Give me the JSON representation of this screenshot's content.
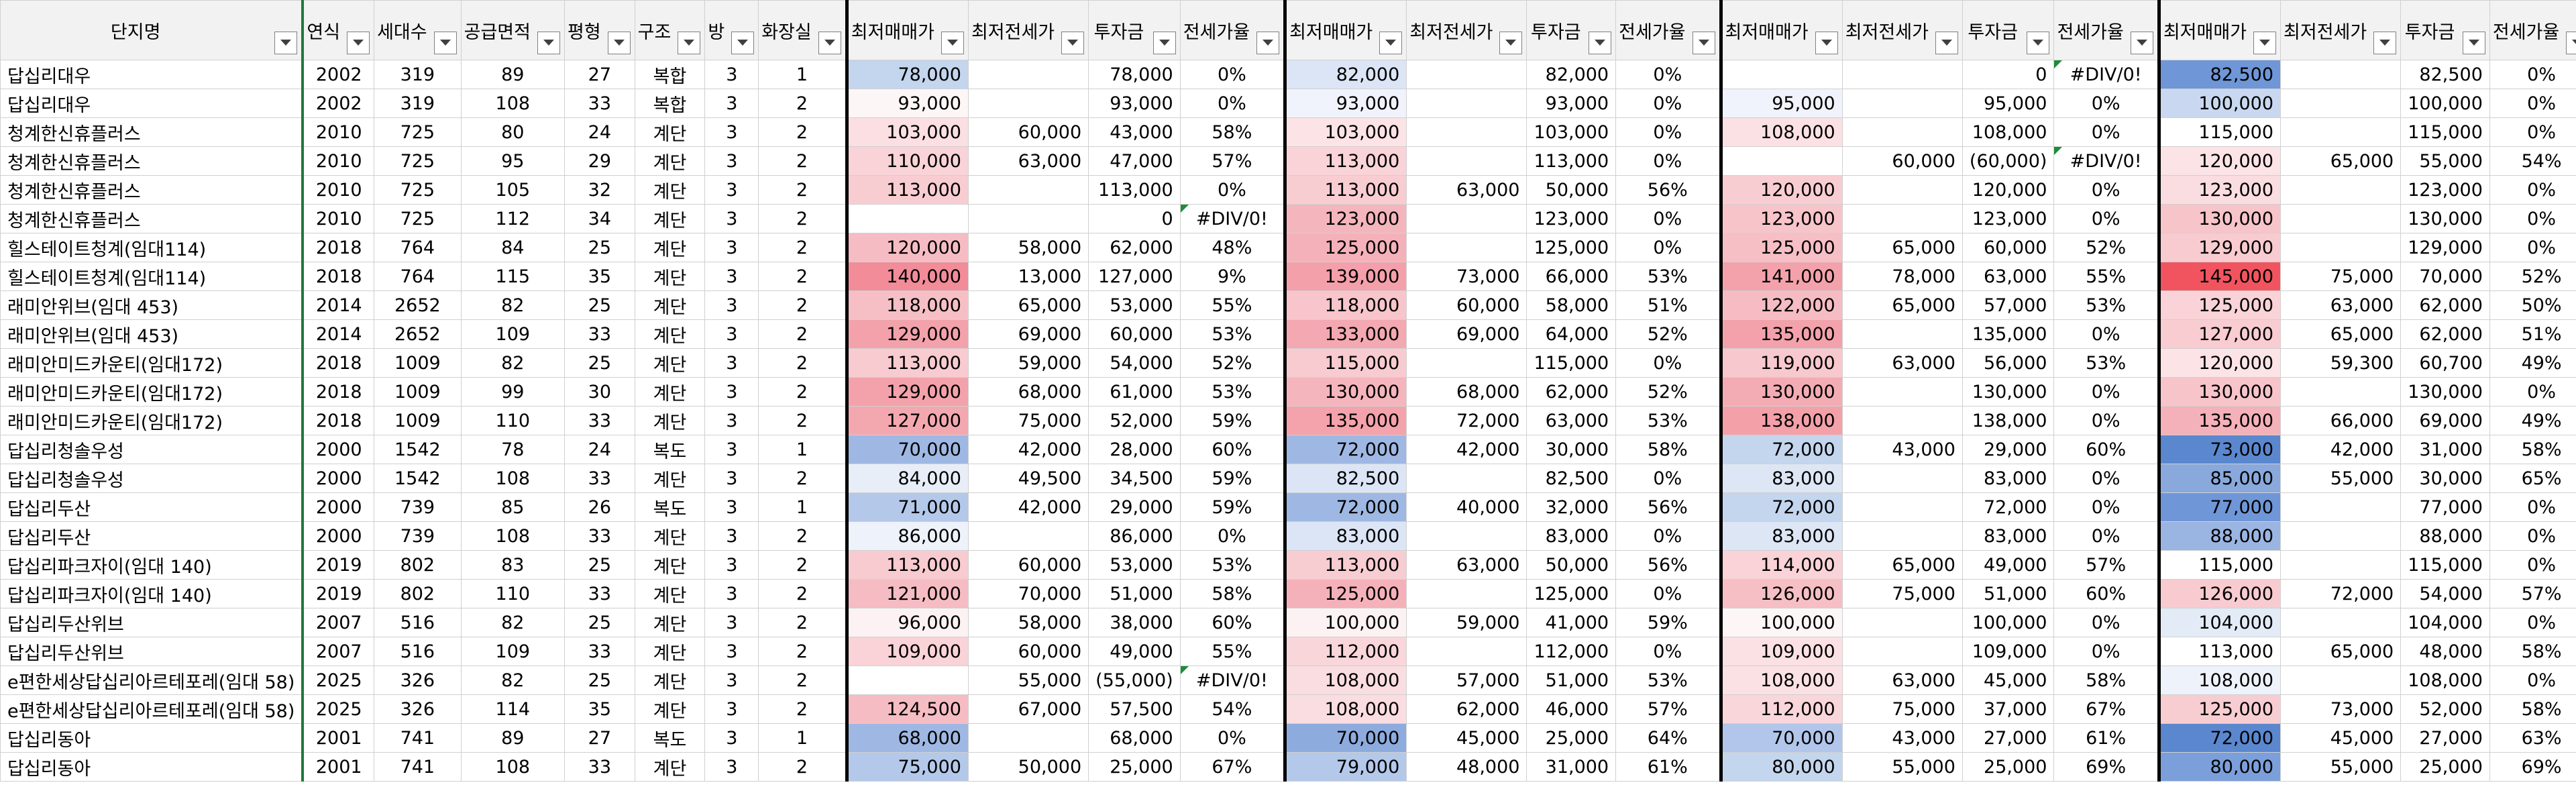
{
  "headers": [
    "단지명",
    "연식",
    "세대수",
    "공급면적",
    "평형",
    "구조",
    "방",
    "화장실",
    "최저매매가",
    "최저전세가",
    "투자금",
    "전세가율",
    "최저매매가",
    "최저전세가",
    "투자금",
    "전세가율",
    "최저매매가",
    "최저전세가",
    "투자금",
    "전세가율",
    "최저매매가",
    "최저전세가",
    "투자금",
    "전세가율"
  ],
  "rows": [
    {
      "cells": [
        "답십리대우",
        "2002",
        "319",
        "89",
        "27",
        "복합",
        "3",
        "1",
        "78,000",
        "",
        "78,000",
        "0%",
        "82,000",
        "",
        "82,000",
        "0%",
        "",
        "",
        "0",
        "#DIV/0!",
        "82,500",
        "",
        "82,500",
        "0%"
      ],
      "fills": [
        "",
        "",
        "",
        "",
        "",
        "",
        "",
        "",
        "#c4d5ee",
        "",
        "",
        "",
        "#dbe5f5",
        "",
        "",
        "",
        "",
        "",
        "",
        "",
        "#6f96d7",
        "",
        "",
        ""
      ]
    },
    {
      "cells": [
        "답십리대우",
        "2002",
        "319",
        "108",
        "33",
        "복합",
        "3",
        "2",
        "93,000",
        "",
        "93,000",
        "0%",
        "93,000",
        "",
        "93,000",
        "0%",
        "95,000",
        "",
        "95,000",
        "0%",
        "100,000",
        "",
        "100,000",
        "0%"
      ],
      "fills": [
        "",
        "",
        "",
        "",
        "",
        "",
        "",
        "",
        "#fdf6f7",
        "",
        "",
        "",
        "#f0f3fb",
        "",
        "",
        "",
        "#f0f3fb",
        "",
        "",
        "",
        "#c9d8f0",
        "",
        "",
        ""
      ]
    },
    {
      "cells": [
        "청계한신휴플러스",
        "2010",
        "725",
        "80",
        "24",
        "계단",
        "3",
        "2",
        "103,000",
        "60,000",
        "43,000",
        "58%",
        "103,000",
        "",
        "103,000",
        "0%",
        "108,000",
        "",
        "108,000",
        "0%",
        "115,000",
        "",
        "115,000",
        "0%"
      ],
      "fills": [
        "",
        "",
        "",
        "",
        "",
        "",
        "",
        "",
        "#fbdfe2",
        "",
        "",
        "",
        "#fbe3e6",
        "",
        "",
        "",
        "#fbe1e4",
        "",
        "",
        "",
        "",
        "",
        "",
        ""
      ]
    },
    {
      "cells": [
        "청계한신휴플러스",
        "2010",
        "725",
        "95",
        "29",
        "계단",
        "3",
        "2",
        "110,000",
        "63,000",
        "47,000",
        "57%",
        "113,000",
        "",
        "113,000",
        "0%",
        "",
        "60,000",
        "(60,000)",
        "#DIV/0!",
        "120,000",
        "65,000",
        "55,000",
        "54%"
      ],
      "fills": [
        "",
        "",
        "",
        "",
        "",
        "",
        "",
        "",
        "#f9d3d7",
        "",
        "",
        "",
        "#f9d3d7",
        "",
        "",
        "",
        "",
        "",
        "",
        "",
        "#fbe3e6",
        "",
        "",
        ""
      ]
    },
    {
      "cells": [
        "청계한신휴플러스",
        "2010",
        "725",
        "105",
        "32",
        "계단",
        "3",
        "2",
        "113,000",
        "",
        "113,000",
        "0%",
        "113,000",
        "63,000",
        "50,000",
        "56%",
        "120,000",
        "",
        "120,000",
        "0%",
        "123,000",
        "",
        "123,000",
        "0%"
      ],
      "fills": [
        "",
        "",
        "",
        "",
        "",
        "",
        "",
        "",
        "#f8cdd2",
        "",
        "",
        "",
        "#f8cdd2",
        "",
        "",
        "",
        "#f8cdd2",
        "",
        "",
        "",
        "#fadde0",
        "",
        "",
        ""
      ]
    },
    {
      "cells": [
        "청계한신휴플러스",
        "2010",
        "725",
        "112",
        "34",
        "계단",
        "3",
        "2",
        "",
        "",
        "0",
        "#DIV/0!",
        "123,000",
        "",
        "123,000",
        "0%",
        "123,000",
        "",
        "123,000",
        "0%",
        "130,000",
        "",
        "130,000",
        "0%"
      ],
      "fills": [
        "",
        "",
        "",
        "",
        "",
        "",
        "",
        "",
        "",
        "",
        "",
        "",
        "#f5b5bd",
        "",
        "",
        "",
        "#f7c4ca",
        "",
        "",
        "",
        "#f7c4ca",
        "",
        "",
        ""
      ]
    },
    {
      "cells": [
        "힐스테이트청계(임대114)",
        "2018",
        "764",
        "84",
        "25",
        "계단",
        "3",
        "2",
        "120,000",
        "58,000",
        "62,000",
        "48%",
        "125,000",
        "",
        "125,000",
        "0%",
        "125,000",
        "65,000",
        "60,000",
        "52%",
        "129,000",
        "",
        "129,000",
        "0%"
      ],
      "fills": [
        "",
        "",
        "",
        "",
        "",
        "",
        "",
        "",
        "#f6bcc3",
        "",
        "",
        "",
        "#f5b1b9",
        "",
        "",
        "",
        "#f6bfc5",
        "",
        "",
        "",
        "#f8cbd0",
        "",
        "",
        ""
      ]
    },
    {
      "cells": [
        "힐스테이트청계(임대114)",
        "2018",
        "764",
        "115",
        "35",
        "계단",
        "3",
        "2",
        "140,000",
        "13,000",
        "127,000",
        "9%",
        "139,000",
        "73,000",
        "66,000",
        "53%",
        "141,000",
        "78,000",
        "63,000",
        "55%",
        "145,000",
        "75,000",
        "70,000",
        "52%"
      ],
      "fills": [
        "",
        "",
        "",
        "",
        "",
        "",
        "",
        "",
        "#f28c98",
        "",
        "",
        "",
        "#f4a0aa",
        "",
        "",
        "",
        "#f3a2ab",
        "",
        "",
        "",
        "#f2545f",
        "",
        "",
        ""
      ]
    },
    {
      "cells": [
        "래미안위브(임대 453)",
        "2014",
        "2652",
        "82",
        "25",
        "계단",
        "3",
        "2",
        "118,000",
        "65,000",
        "53,000",
        "55%",
        "118,000",
        "60,000",
        "58,000",
        "51%",
        "122,000",
        "65,000",
        "57,000",
        "53%",
        "125,000",
        "63,000",
        "62,000",
        "50%"
      ],
      "fills": [
        "",
        "",
        "",
        "",
        "",
        "",
        "",
        "",
        "#f6bfc5",
        "",
        "",
        "",
        "#f7c5cb",
        "",
        "",
        "",
        "#f6bcc3",
        "",
        "",
        "",
        "#f9d3d7",
        "",
        "",
        ""
      ]
    },
    {
      "cells": [
        "래미안위브(임대 453)",
        "2014",
        "2652",
        "109",
        "33",
        "계단",
        "3",
        "2",
        "129,000",
        "69,000",
        "60,000",
        "53%",
        "133,000",
        "69,000",
        "64,000",
        "52%",
        "135,000",
        "",
        "135,000",
        "0%",
        "127,000",
        "65,000",
        "62,000",
        "51%"
      ],
      "fills": [
        "",
        "",
        "",
        "",
        "",
        "",
        "",
        "",
        "#f3a2ab",
        "",
        "",
        "",
        "#f4a8b1",
        "",
        "",
        "",
        "#f3a2ab",
        "",
        "",
        "",
        "#f8ccd1",
        "",
        "",
        ""
      ]
    },
    {
      "cells": [
        "래미안미드카운티(임대172)",
        "2018",
        "1009",
        "82",
        "25",
        "계단",
        "3",
        "2",
        "113,000",
        "59,000",
        "54,000",
        "52%",
        "115,000",
        "",
        "115,000",
        "0%",
        "119,000",
        "63,000",
        "56,000",
        "53%",
        "120,000",
        "59,300",
        "60,700",
        "49%"
      ],
      "fills": [
        "",
        "",
        "",
        "",
        "",
        "",
        "",
        "",
        "#f8cbd0",
        "",
        "",
        "",
        "#f8cbd0",
        "",
        "",
        "",
        "#f7c8cd",
        "",
        "",
        "",
        "#fbe3e6",
        "",
        "",
        ""
      ]
    },
    {
      "cells": [
        "래미안미드카운티(임대172)",
        "2018",
        "1009",
        "99",
        "30",
        "계단",
        "3",
        "2",
        "129,000",
        "68,000",
        "61,000",
        "53%",
        "130,000",
        "68,000",
        "62,000",
        "52%",
        "130,000",
        "",
        "130,000",
        "0%",
        "130,000",
        "",
        "130,000",
        "0%"
      ],
      "fills": [
        "",
        "",
        "",
        "",
        "",
        "",
        "",
        "",
        "#f3a2ab",
        "",
        "",
        "",
        "#f5b5bd",
        "",
        "",
        "",
        "#f4acb4",
        "",
        "",
        "",
        "#f7c4ca",
        "",
        "",
        ""
      ]
    },
    {
      "cells": [
        "래미안미드카운티(임대172)",
        "2018",
        "1009",
        "110",
        "33",
        "계단",
        "3",
        "2",
        "127,000",
        "75,000",
        "52,000",
        "59%",
        "135,000",
        "72,000",
        "63,000",
        "53%",
        "138,000",
        "",
        "138,000",
        "0%",
        "135,000",
        "66,000",
        "69,000",
        "49%"
      ],
      "fills": [
        "",
        "",
        "",
        "",
        "",
        "",
        "",
        "",
        "#f3a8b0",
        "",
        "",
        "",
        "#f4a2ab",
        "",
        "",
        "",
        "#f3a0a9",
        "",
        "",
        "",
        "#f5b1b9",
        "",
        "",
        ""
      ]
    },
    {
      "cells": [
        "답십리청솔우성",
        "2000",
        "1542",
        "78",
        "24",
        "복도",
        "3",
        "1",
        "70,000",
        "42,000",
        "28,000",
        "60%",
        "72,000",
        "42,000",
        "30,000",
        "58%",
        "72,000",
        "43,000",
        "29,000",
        "60%",
        "73,000",
        "42,000",
        "31,000",
        "58%"
      ],
      "fills": [
        "",
        "",
        "",
        "",
        "",
        "",
        "",
        "",
        "#9fb8e3",
        "",
        "",
        "",
        "#9fb8e3",
        "",
        "",
        "",
        "#c4d5ee",
        "",
        "",
        "",
        "#5b87cf",
        "",
        "",
        ""
      ]
    },
    {
      "cells": [
        "답십리청솔우성",
        "2000",
        "1542",
        "108",
        "33",
        "계단",
        "3",
        "2",
        "84,000",
        "49,500",
        "34,500",
        "59%",
        "82,500",
        "",
        "82,500",
        "0%",
        "83,000",
        "",
        "83,000",
        "0%",
        "85,000",
        "55,000",
        "30,000",
        "65%"
      ],
      "fills": [
        "",
        "",
        "",
        "",
        "",
        "",
        "",
        "",
        "#e8eef8",
        "",
        "",
        "",
        "#dbe5f5",
        "",
        "",
        "",
        "#dde6f5",
        "",
        "",
        "",
        "#89a9dd",
        "",
        "",
        ""
      ]
    },
    {
      "cells": [
        "답십리두산",
        "2000",
        "739",
        "85",
        "26",
        "복도",
        "3",
        "1",
        "71,000",
        "42,000",
        "29,000",
        "59%",
        "72,000",
        "40,000",
        "32,000",
        "56%",
        "72,000",
        "",
        "72,000",
        "0%",
        "77,000",
        "",
        "77,000",
        "0%"
      ],
      "fills": [
        "",
        "",
        "",
        "",
        "",
        "",
        "",
        "",
        "#b4c8ea",
        "",
        "",
        "",
        "#9fb8e3",
        "",
        "",
        "",
        "#c4d5ee",
        "",
        "",
        "",
        "#6f96d7",
        "",
        "",
        ""
      ]
    },
    {
      "cells": [
        "답십리두산",
        "2000",
        "739",
        "108",
        "33",
        "계단",
        "3",
        "2",
        "86,000",
        "",
        "86,000",
        "0%",
        "83,000",
        "",
        "83,000",
        "0%",
        "83,000",
        "",
        "83,000",
        "0%",
        "88,000",
        "",
        "88,000",
        "0%"
      ],
      "fills": [
        "",
        "",
        "",
        "",
        "",
        "",
        "",
        "",
        "#eef2fa",
        "",
        "",
        "",
        "#dbe5f5",
        "",
        "",
        "",
        "#dde6f5",
        "",
        "",
        "",
        "#9bb5e2",
        "",
        "",
        ""
      ]
    },
    {
      "cells": [
        "답십리파크자이(임대 140)",
        "2019",
        "802",
        "83",
        "25",
        "계단",
        "3",
        "2",
        "113,000",
        "60,000",
        "53,000",
        "53%",
        "113,000",
        "63,000",
        "50,000",
        "56%",
        "114,000",
        "65,000",
        "49,000",
        "57%",
        "115,000",
        "",
        "115,000",
        "0%"
      ],
      "fills": [
        "",
        "",
        "",
        "",
        "",
        "",
        "",
        "",
        "#f8cbd0",
        "",
        "",
        "",
        "#f8cdd2",
        "",
        "",
        "",
        "#f9d3d7",
        "",
        "",
        "",
        "",
        "",
        "",
        ""
      ]
    },
    {
      "cells": [
        "답십리파크자이(임대 140)",
        "2019",
        "802",
        "110",
        "33",
        "계단",
        "3",
        "2",
        "121,000",
        "70,000",
        "51,000",
        "58%",
        "125,000",
        "",
        "125,000",
        "0%",
        "126,000",
        "75,000",
        "51,000",
        "60%",
        "126,000",
        "72,000",
        "54,000",
        "57%"
      ],
      "fills": [
        "",
        "",
        "",
        "",
        "",
        "",
        "",
        "",
        "#f6bcc3",
        "",
        "",
        "",
        "#f5b1b9",
        "",
        "",
        "",
        "#f6bfc5",
        "",
        "",
        "",
        "#f8cbd0",
        "",
        "",
        ""
      ]
    },
    {
      "cells": [
        "답십리두산위브",
        "2007",
        "516",
        "82",
        "25",
        "계단",
        "3",
        "2",
        "96,000",
        "58,000",
        "38,000",
        "60%",
        "100,000",
        "59,000",
        "41,000",
        "59%",
        "100,000",
        "",
        "100,000",
        "0%",
        "104,000",
        "",
        "104,000",
        "0%"
      ],
      "fills": [
        "",
        "",
        "",
        "",
        "",
        "",
        "",
        "",
        "#fdf2f3",
        "",
        "",
        "",
        "#fdf2f3",
        "",
        "",
        "",
        "#fdf6f7",
        "",
        "",
        "",
        "#e3ebf7",
        "",
        "",
        ""
      ]
    },
    {
      "cells": [
        "답십리두산위브",
        "2007",
        "516",
        "109",
        "33",
        "계단",
        "3",
        "2",
        "109,000",
        "60,000",
        "49,000",
        "55%",
        "112,000",
        "",
        "112,000",
        "0%",
        "109,000",
        "",
        "109,000",
        "0%",
        "113,000",
        "65,000",
        "48,000",
        "58%"
      ],
      "fills": [
        "",
        "",
        "",
        "",
        "",
        "",
        "",
        "",
        "#f9d3d7",
        "",
        "",
        "",
        "#f9d6da",
        "",
        "",
        "",
        "#fbe1e4",
        "",
        "",
        "",
        "",
        "",
        "",
        ""
      ]
    },
    {
      "cells": [
        "e편한세상답십리아르테포레(임대 58)",
        "2025",
        "326",
        "82",
        "25",
        "계단",
        "3",
        "2",
        "",
        "55,000",
        "(55,000)",
        "#DIV/0!",
        "108,000",
        "57,000",
        "51,000",
        "53%",
        "108,000",
        "63,000",
        "45,000",
        "58%",
        "108,000",
        "",
        "108,000",
        "0%"
      ],
      "fills": [
        "",
        "",
        "",
        "",
        "",
        "",
        "",
        "",
        "",
        "",
        "",
        "",
        "#fadde0",
        "",
        "",
        "",
        "#fbe1e4",
        "",
        "",
        "",
        "#eef2fa",
        "",
        "",
        ""
      ]
    },
    {
      "cells": [
        "e편한세상답십리아르테포레(임대 58)",
        "2025",
        "326",
        "114",
        "35",
        "계단",
        "3",
        "2",
        "124,500",
        "67,000",
        "57,500",
        "54%",
        "108,000",
        "62,000",
        "46,000",
        "57%",
        "112,000",
        "75,000",
        "37,000",
        "67%",
        "125,000",
        "73,000",
        "52,000",
        "58%"
      ],
      "fills": [
        "",
        "",
        "",
        "",
        "",
        "",
        "",
        "",
        "#f6bcc3",
        "",
        "",
        "",
        "#fadde0",
        "",
        "",
        "",
        "#f9d6da",
        "",
        "",
        "",
        "#f8cdd2",
        "",
        "",
        ""
      ]
    },
    {
      "cells": [
        "답십리동아",
        "2001",
        "741",
        "89",
        "27",
        "복도",
        "3",
        "1",
        "68,000",
        "",
        "68,000",
        "0%",
        "70,000",
        "45,000",
        "25,000",
        "64%",
        "70,000",
        "43,000",
        "27,000",
        "61%",
        "72,000",
        "45,000",
        "27,000",
        "63%"
      ],
      "fills": [
        "",
        "",
        "",
        "",
        "",
        "",
        "",
        "",
        "#9fb8e3",
        "",
        "",
        "",
        "#8eabde",
        "",
        "",
        "",
        "#b1c6ea",
        "",
        "",
        "",
        "#5b87cf",
        "",
        "",
        ""
      ]
    },
    {
      "cells": [
        "답십리동아",
        "2001",
        "741",
        "108",
        "33",
        "계단",
        "3",
        "2",
        "75,000",
        "50,000",
        "25,000",
        "67%",
        "79,000",
        "48,000",
        "31,000",
        "61%",
        "80,000",
        "55,000",
        "25,000",
        "69%",
        "80,000",
        "55,000",
        "25,000",
        "69%"
      ],
      "fills": [
        "",
        "",
        "",
        "",
        "",
        "",
        "",
        "",
        "#b4c8ea",
        "",
        "",
        "",
        "#b4c8ea",
        "",
        "",
        "",
        "#c4d5ee",
        "",
        "",
        "",
        "#7b9fda",
        "",
        "",
        ""
      ]
    }
  ]
}
